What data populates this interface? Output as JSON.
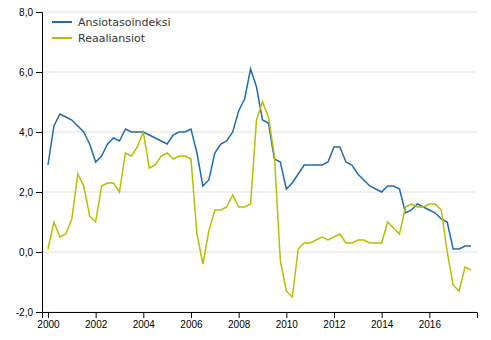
{
  "chart_data": {
    "type": "line",
    "x": [
      2000.0,
      2000.25,
      2000.5,
      2000.75,
      2001.0,
      2001.25,
      2001.5,
      2001.75,
      2002.0,
      2002.25,
      2002.5,
      2002.75,
      2003.0,
      2003.25,
      2003.5,
      2003.75,
      2004.0,
      2004.25,
      2004.5,
      2004.75,
      2005.0,
      2005.25,
      2005.5,
      2005.75,
      2006.0,
      2006.25,
      2006.5,
      2006.75,
      2007.0,
      2007.25,
      2007.5,
      2007.75,
      2008.0,
      2008.25,
      2008.5,
      2008.75,
      2009.0,
      2009.25,
      2009.5,
      2009.75,
      2010.0,
      2010.25,
      2010.5,
      2010.75,
      2011.0,
      2011.25,
      2011.5,
      2011.75,
      2012.0,
      2012.25,
      2012.5,
      2012.75,
      2013.0,
      2013.25,
      2013.5,
      2013.75,
      2014.0,
      2014.25,
      2014.5,
      2014.75,
      2015.0,
      2015.25,
      2015.5,
      2015.75,
      2016.0,
      2016.25,
      2016.5,
      2016.75,
      2017.0,
      2017.25,
      2017.5,
      2017.75
    ],
    "series": [
      {
        "name": "Ansiotasoindeksi",
        "color": "#1f6cb0",
        "values": [
          2.9,
          4.2,
          4.6,
          4.5,
          4.4,
          4.2,
          4.0,
          3.6,
          3.0,
          3.2,
          3.6,
          3.8,
          3.7,
          4.1,
          4.0,
          4.0,
          4.0,
          3.9,
          3.8,
          3.7,
          3.6,
          3.9,
          4.0,
          4.0,
          4.1,
          3.3,
          2.2,
          2.4,
          3.3,
          3.6,
          3.7,
          4.0,
          4.7,
          5.1,
          6.1,
          5.5,
          4.4,
          4.3,
          3.1,
          3.0,
          2.1,
          2.3,
          2.6,
          2.9,
          2.9,
          2.9,
          2.9,
          3.0,
          3.5,
          3.5,
          3.0,
          2.9,
          2.6,
          2.4,
          2.2,
          2.1,
          2.0,
          2.2,
          2.2,
          2.1,
          1.3,
          1.4,
          1.6,
          1.5,
          1.4,
          1.3,
          1.1,
          1.0,
          0.1,
          0.1,
          0.2,
          0.2
        ]
      },
      {
        "name": "Reaaliansiot",
        "color": "#b5c000",
        "values": [
          0.1,
          1.0,
          0.5,
          0.6,
          1.1,
          2.6,
          2.2,
          1.2,
          1.0,
          2.2,
          2.3,
          2.3,
          2.0,
          3.3,
          3.2,
          3.5,
          4.0,
          2.8,
          2.9,
          3.2,
          3.3,
          3.1,
          3.2,
          3.2,
          3.1,
          0.6,
          -0.4,
          0.7,
          1.4,
          1.4,
          1.5,
          1.9,
          1.5,
          1.5,
          1.6,
          4.4,
          5.0,
          4.5,
          3.2,
          -0.3,
          -1.3,
          -1.5,
          0.1,
          0.3,
          0.3,
          0.4,
          0.5,
          0.4,
          0.5,
          0.6,
          0.3,
          0.3,
          0.4,
          0.4,
          0.3,
          0.3,
          0.3,
          1.0,
          0.8,
          0.6,
          1.5,
          1.6,
          1.5,
          1.5,
          1.6,
          1.6,
          1.4,
          0.0,
          -1.1,
          -1.3,
          -0.5,
          -0.6
        ]
      }
    ],
    "xlim": [
      1999.75,
      2018.0
    ],
    "xticks": [
      2000,
      2002,
      2004,
      2006,
      2008,
      2010,
      2012,
      2014,
      2016
    ],
    "ylim": [
      -2.0,
      8.0
    ],
    "yticks": [
      {
        "value": -2.0,
        "label": "-2,0"
      },
      {
        "value": 0.0,
        "label": "0,0"
      },
      {
        "value": 2.0,
        "label": "2,0"
      },
      {
        "value": 4.0,
        "label": "4,0"
      },
      {
        "value": 6.0,
        "label": "6,0"
      },
      {
        "value": 8.0,
        "label": "8,0"
      }
    ],
    "grid": true,
    "legend": "upper left"
  }
}
